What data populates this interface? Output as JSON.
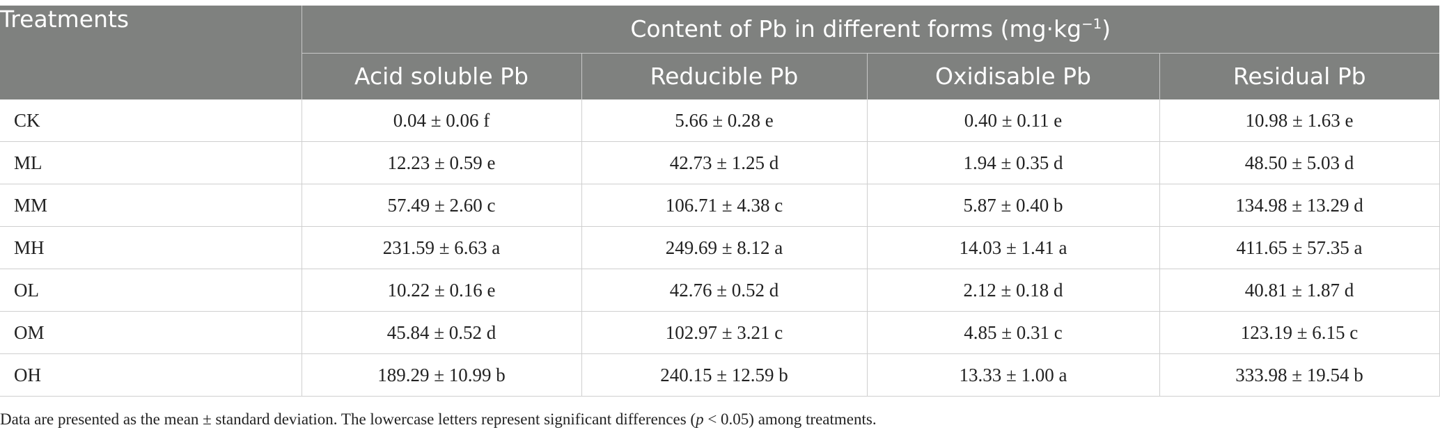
{
  "table": {
    "corner_header": "Treatments",
    "group_header": "Content of Pb in different forms (mg·kg",
    "group_header_sup": "−1",
    "group_header_close": ")",
    "columns": [
      "Acid soluble Pb",
      "Reducible Pb",
      "Oxidisable Pb",
      "Residual Pb"
    ],
    "rows": [
      {
        "name": "CK",
        "cells": [
          "0.04 ± 0.06 f",
          "5.66 ± 0.28 e",
          "0.40 ± 0.11 e",
          "10.98 ± 1.63 e"
        ]
      },
      {
        "name": "ML",
        "cells": [
          "12.23 ± 0.59 e",
          "42.73 ± 1.25 d",
          "1.94 ± 0.35 d",
          "48.50 ± 5.03 d"
        ]
      },
      {
        "name": "MM",
        "cells": [
          "57.49 ± 2.60 c",
          "106.71 ± 4.38 c",
          "5.87 ± 0.40 b",
          "134.98 ± 13.29 d"
        ]
      },
      {
        "name": "MH",
        "cells": [
          "231.59 ± 6.63 a",
          "249.69 ± 8.12 a",
          "14.03 ± 1.41 a",
          "411.65 ± 57.35 a"
        ]
      },
      {
        "name": "OL",
        "cells": [
          "10.22 ± 0.16 e",
          "42.76 ± 0.52 d",
          "2.12 ± 0.18 d",
          "40.81 ± 1.87 d"
        ]
      },
      {
        "name": "OM",
        "cells": [
          "45.84 ± 0.52 d",
          "102.97 ± 3.21 c",
          "4.85 ± 0.31 c",
          "123.19 ± 6.15 c"
        ]
      },
      {
        "name": "OH",
        "cells": [
          "189.29 ± 10.99 b",
          "240.15 ± 12.59 b",
          "13.33 ± 1.00 a",
          "333.98 ± 19.54 b"
        ]
      }
    ]
  },
  "footnote": {
    "before": "Data are presented as the mean ± standard deviation. The lowercase letters represent significant differences (",
    "italic": "p",
    "after": " < 0.05) among treatments."
  }
}
